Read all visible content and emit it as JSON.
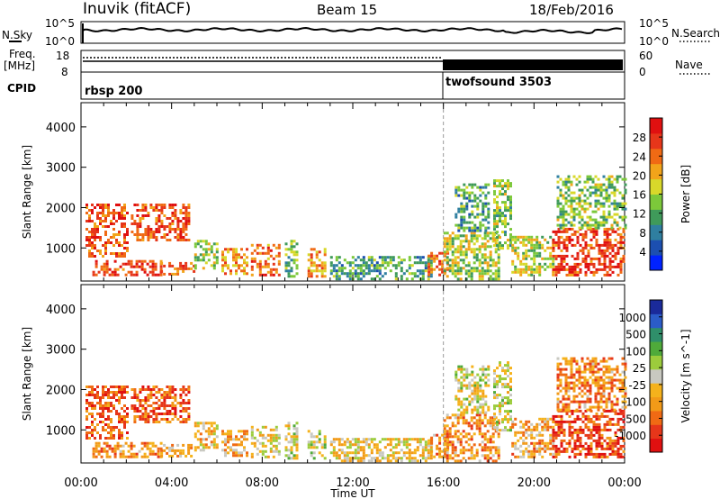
{
  "header": {
    "station": "Inuvik (fitACF)",
    "beam": "Beam 15",
    "date": "18/Feb/2016"
  },
  "panels": {
    "nsky_label": "N.Sky",
    "nsky_ticks": [
      "10^5",
      "10^0"
    ],
    "nsearch_label": "N.Search",
    "nsearch_ticks": [
      "10^5",
      "10^0"
    ],
    "freq_label_1": "Freq.",
    "freq_label_2": "[MHz]",
    "freq_ticks": [
      "18",
      "8"
    ],
    "nave_label": "Nave",
    "nave_ticks": [
      "60",
      "0"
    ],
    "cpid_label": "CPID",
    "cpid_1": "rbsp 200",
    "cpid_2": "twofsound 3503"
  },
  "chart_data": [
    {
      "type": "heatmap",
      "title": "",
      "quantity": "Power",
      "ylabel": "Slant Range [km]",
      "xlabel": "Time UT",
      "x_ticks": [
        "00:00",
        "04:00",
        "08:00",
        "12:00",
        "16:00",
        "20:00",
        "00:00"
      ],
      "y_ticks": [
        1000,
        2000,
        3000,
        4000
      ],
      "ylim": [
        180,
        4600
      ],
      "colorbar_label": "Power [dB]",
      "colorbar_ticks": [
        "28",
        "24",
        "20",
        "16",
        "12",
        "8",
        "4"
      ],
      "colorbar_range": [
        0,
        32
      ],
      "colors": [
        "#0022ff",
        "#1c4fb0",
        "#2f7fa0",
        "#3f9a5a",
        "#7cc83a",
        "#d8d82a",
        "#f2a41a",
        "#f06a14",
        "#e6361a",
        "#e01010"
      ],
      "regions": [
        {
          "t_start": 0.2,
          "t_end": 2.0,
          "range_start": 800,
          "range_end": 2100,
          "level": 0.8
        },
        {
          "t_start": 0.5,
          "t_end": 3.5,
          "range_start": 300,
          "range_end": 700,
          "level": 0.85
        },
        {
          "t_start": 2.2,
          "t_end": 4.8,
          "range_start": 1200,
          "range_end": 2100,
          "level": 0.8
        },
        {
          "t_start": 3.5,
          "t_end": 5.0,
          "range_start": 350,
          "range_end": 650,
          "level": 0.75
        },
        {
          "t_start": 5.0,
          "t_end": 6.0,
          "range_start": 500,
          "range_end": 1200,
          "level": 0.5
        },
        {
          "t_start": 6.2,
          "t_end": 7.3,
          "range_start": 350,
          "range_end": 1000,
          "level": 0.7
        },
        {
          "t_start": 7.5,
          "t_end": 8.8,
          "range_start": 300,
          "range_end": 1100,
          "level": 0.75
        },
        {
          "t_start": 9.0,
          "t_end": 9.5,
          "range_start": 300,
          "range_end": 1200,
          "level": 0.4
        },
        {
          "t_start": 10.0,
          "t_end": 10.8,
          "range_start": 300,
          "range_end": 1000,
          "level": 0.7
        },
        {
          "t_start": 11.0,
          "t_end": 15.5,
          "range_start": 250,
          "range_end": 800,
          "level": 0.35
        },
        {
          "t_start": 15.3,
          "t_end": 16.2,
          "range_start": 350,
          "range_end": 900,
          "level": 0.8
        },
        {
          "t_start": 16.0,
          "t_end": 18.5,
          "range_start": 250,
          "range_end": 1400,
          "level": 0.5
        },
        {
          "t_start": 16.5,
          "t_end": 18.0,
          "range_start": 1400,
          "range_end": 2600,
          "level": 0.35
        },
        {
          "t_start": 18.2,
          "t_end": 19.0,
          "range_start": 1000,
          "range_end": 2700,
          "level": 0.45
        },
        {
          "t_start": 19.0,
          "t_end": 20.8,
          "range_start": 300,
          "range_end": 1300,
          "level": 0.5
        },
        {
          "t_start": 20.8,
          "t_end": 24.0,
          "range_start": 300,
          "range_end": 1500,
          "level": 0.85
        },
        {
          "t_start": 21.0,
          "t_end": 24.0,
          "range_start": 1500,
          "range_end": 2800,
          "level": 0.45
        }
      ]
    },
    {
      "type": "heatmap",
      "title": "",
      "quantity": "Velocity",
      "ylabel": "Slant Range [km]",
      "xlabel": "Time UT",
      "x_ticks": [
        "00:00",
        "04:00",
        "08:00",
        "12:00",
        "16:00",
        "20:00",
        "00:00"
      ],
      "y_ticks": [
        1000,
        2000,
        3000,
        4000
      ],
      "ylim": [
        180,
        4600
      ],
      "colorbar_label": "Velocity [m s^-1]",
      "colorbar_ticks": [
        "1000",
        "500",
        "100",
        "25",
        "-25",
        "-100",
        "-500",
        "-1000"
      ],
      "colorbar_range": [
        -1200,
        1200
      ],
      "colors": [
        "#e01010",
        "#e6361a",
        "#f06a14",
        "#f29a18",
        "#f5b21c",
        "#c8c8c0",
        "#9ccc3c",
        "#4faa3a",
        "#2f8f6a",
        "#2b5cc8",
        "#1a2a9a"
      ],
      "regions": [
        {
          "t_start": 0.2,
          "t_end": 2.0,
          "range_start": 800,
          "range_end": 2100,
          "level": 0.2
        },
        {
          "t_start": 0.5,
          "t_end": 3.5,
          "range_start": 300,
          "range_end": 700,
          "level": 0.3
        },
        {
          "t_start": 2.2,
          "t_end": 4.8,
          "range_start": 1200,
          "range_end": 2100,
          "level": 0.2
        },
        {
          "t_start": 3.5,
          "t_end": 5.0,
          "range_start": 350,
          "range_end": 650,
          "level": 0.35
        },
        {
          "t_start": 5.0,
          "t_end": 6.0,
          "range_start": 500,
          "range_end": 1200,
          "level": 0.4
        },
        {
          "t_start": 6.2,
          "t_end": 7.3,
          "range_start": 350,
          "range_end": 1000,
          "level": 0.35
        },
        {
          "t_start": 7.5,
          "t_end": 8.8,
          "range_start": 300,
          "range_end": 1100,
          "level": 0.45
        },
        {
          "t_start": 9.0,
          "t_end": 9.5,
          "range_start": 300,
          "range_end": 1200,
          "level": 0.5
        },
        {
          "t_start": 10.0,
          "t_end": 10.8,
          "range_start": 300,
          "range_end": 1000,
          "level": 0.55
        },
        {
          "t_start": 11.0,
          "t_end": 15.5,
          "range_start": 250,
          "range_end": 800,
          "level": 0.45
        },
        {
          "t_start": 15.3,
          "t_end": 16.2,
          "range_start": 350,
          "range_end": 900,
          "level": 0.3
        },
        {
          "t_start": 16.0,
          "t_end": 18.5,
          "range_start": 250,
          "range_end": 1400,
          "level": 0.3
        },
        {
          "t_start": 16.5,
          "t_end": 18.0,
          "range_start": 1400,
          "range_end": 2600,
          "level": 0.5
        },
        {
          "t_start": 18.2,
          "t_end": 19.0,
          "range_start": 1000,
          "range_end": 2700,
          "level": 0.5
        },
        {
          "t_start": 19.0,
          "t_end": 20.8,
          "range_start": 300,
          "range_end": 1300,
          "level": 0.35
        },
        {
          "t_start": 20.8,
          "t_end": 24.0,
          "range_start": 300,
          "range_end": 1500,
          "level": 0.15
        },
        {
          "t_start": 21.0,
          "t_end": 24.0,
          "range_start": 1500,
          "range_end": 2800,
          "level": 0.3
        }
      ]
    }
  ]
}
